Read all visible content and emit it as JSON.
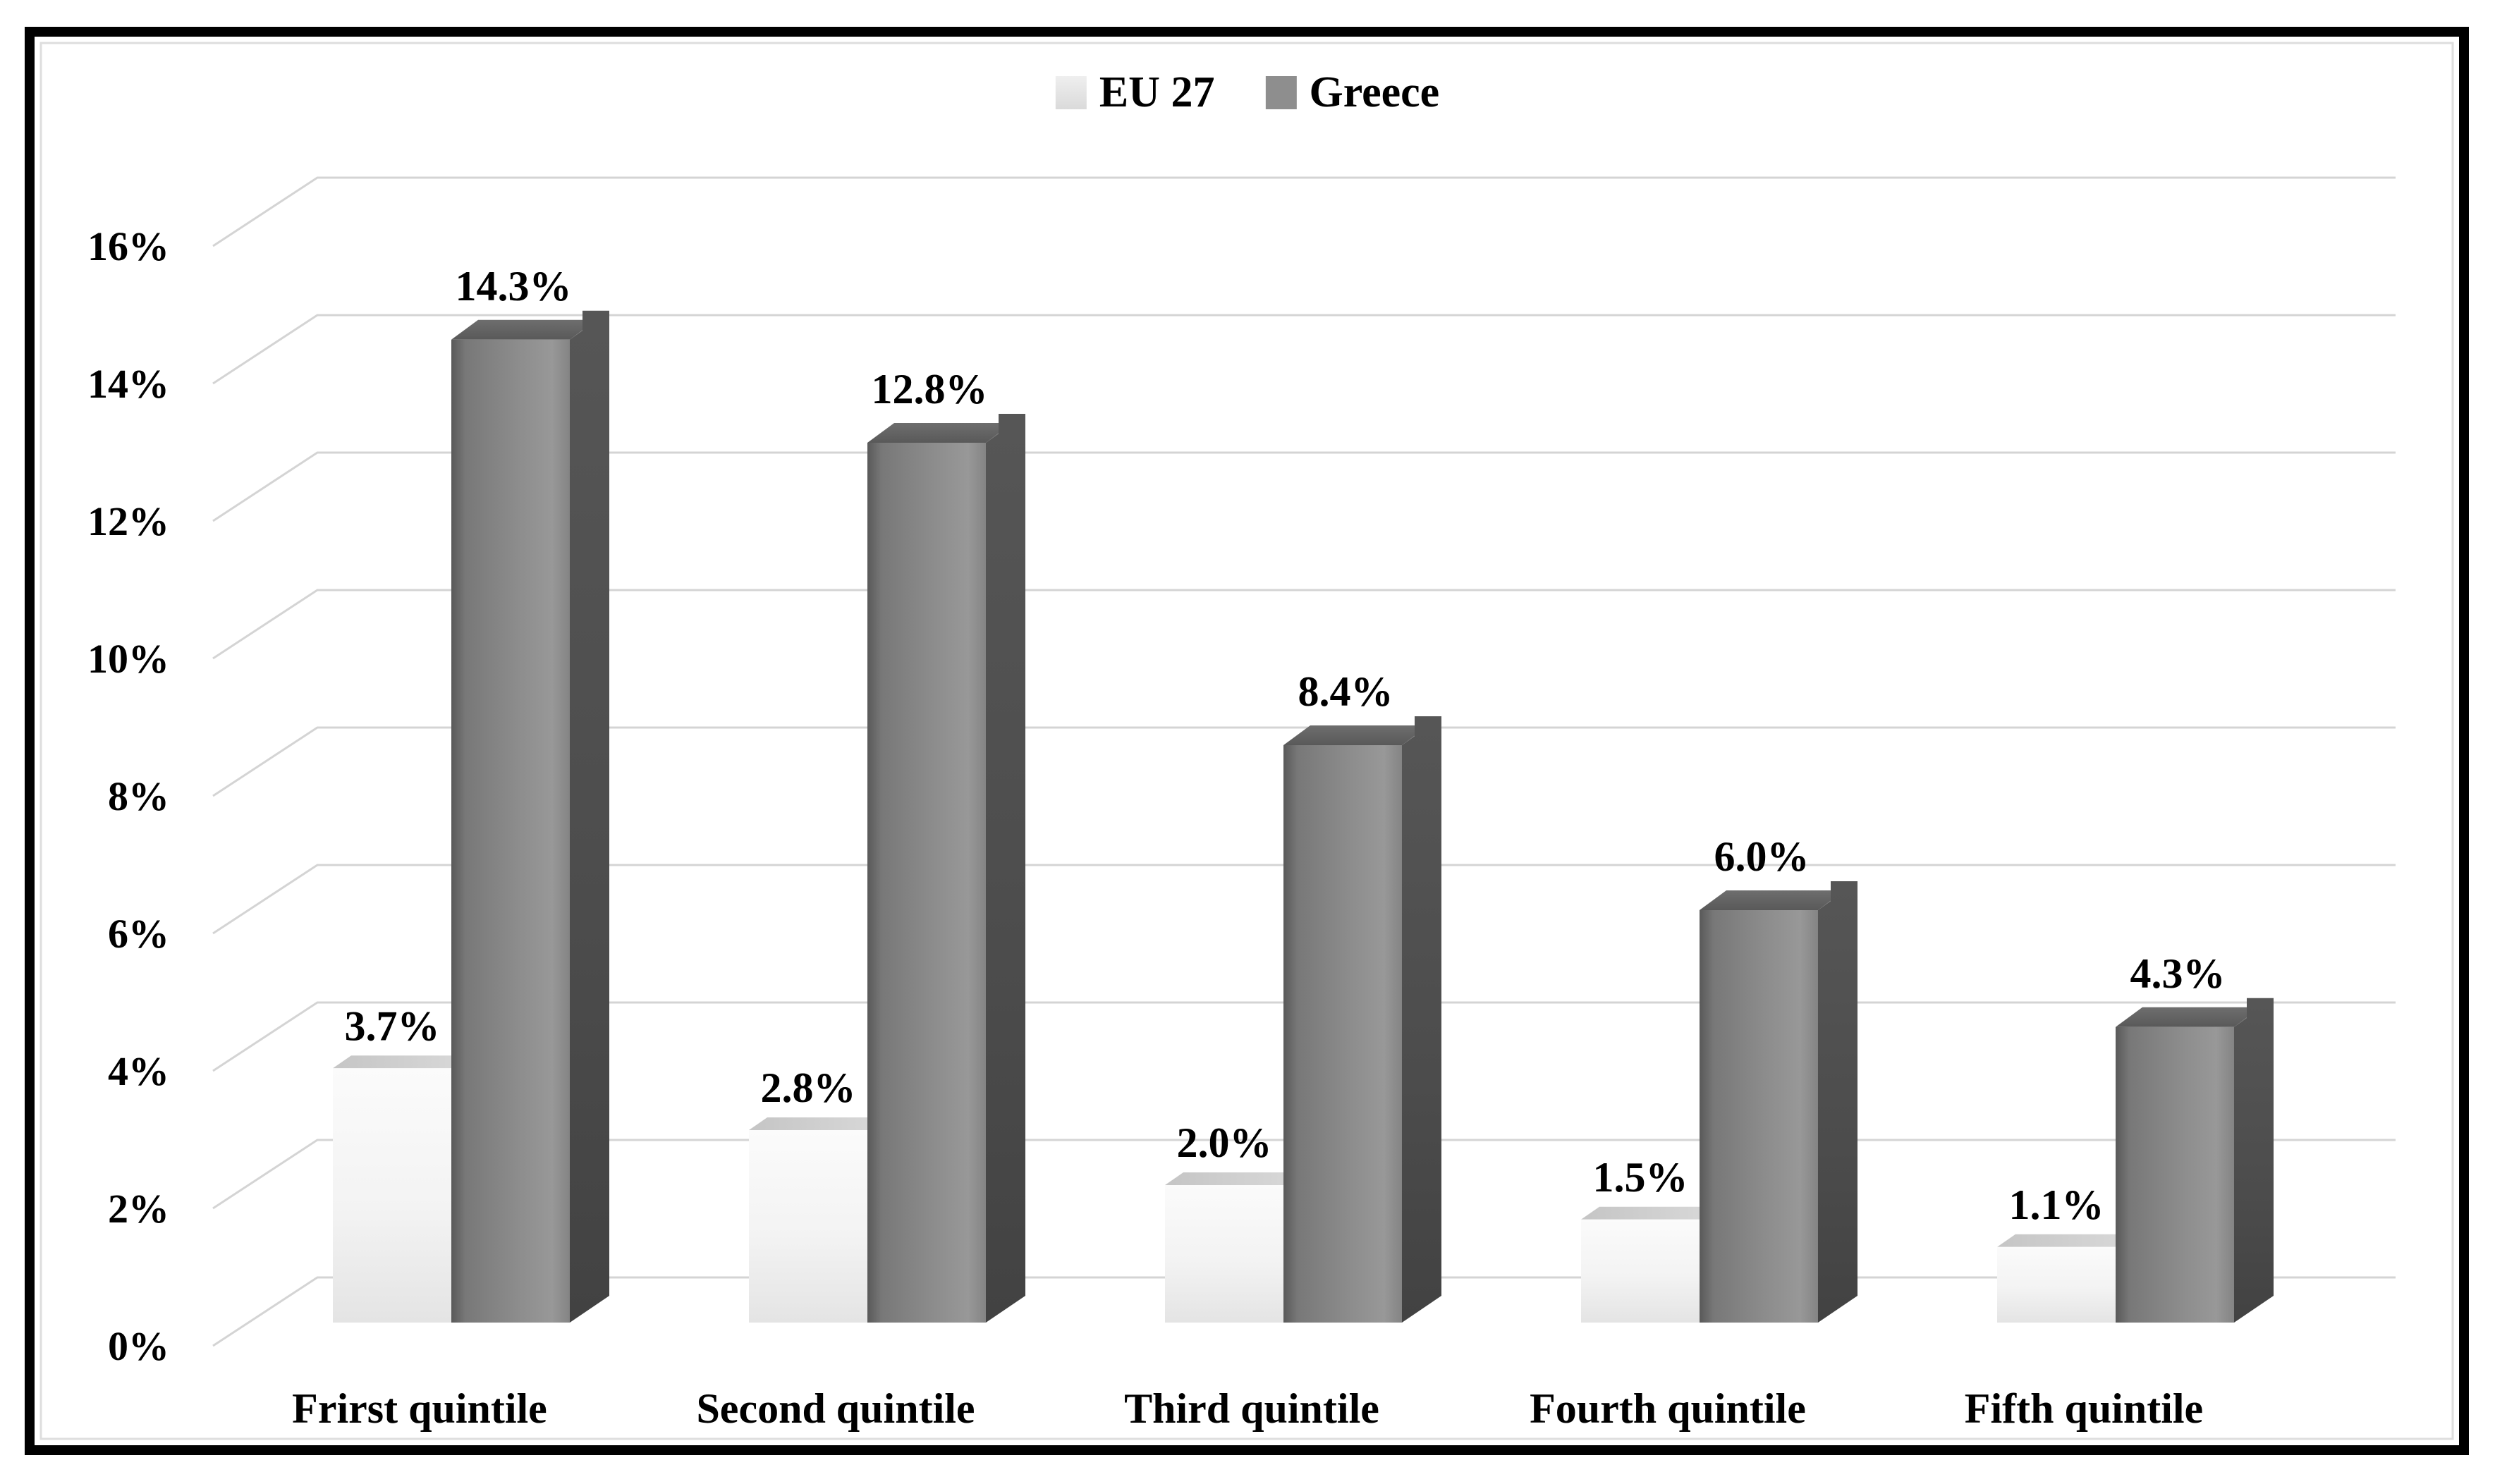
{
  "legend": {
    "items": [
      {
        "label": "EU 27",
        "color": "#e4e4e4"
      },
      {
        "label": "Greece",
        "color": "#8e8e8e"
      }
    ]
  },
  "chart_data": {
    "type": "bar",
    "variant": "3d-clustered-column",
    "title": "",
    "xlabel": "",
    "ylabel": "",
    "categories": [
      "Frirst quintile",
      "Second quintile",
      "Third quintile",
      "Fourth quintile",
      "Fifth quintile"
    ],
    "series": [
      {
        "name": "EU 27",
        "color": "#ececec",
        "values": [
          3.7,
          2.8,
          2.0,
          1.5,
          1.1
        ],
        "value_labels": [
          "3.7%",
          "2.8%",
          "2.0%",
          "1.5%",
          "1.1%"
        ]
      },
      {
        "name": "Greece",
        "color": "#8a8a8a",
        "values": [
          14.3,
          12.8,
          8.4,
          6.0,
          4.3
        ],
        "value_labels": [
          "14.3%",
          "12.8%",
          "8.4%",
          "6.0%",
          "4.3%"
        ]
      }
    ],
    "y_axis": {
      "min": 0,
      "max": 16,
      "step": 2,
      "format": "percent",
      "tick_labels": [
        "0%",
        "2%",
        "4%",
        "6%",
        "8%",
        "10%",
        "12%",
        "14%",
        "16%"
      ]
    },
    "legend_position": "top",
    "gridlines": true,
    "grid_color": "#d4d4d4",
    "frame_color": "#000000"
  }
}
